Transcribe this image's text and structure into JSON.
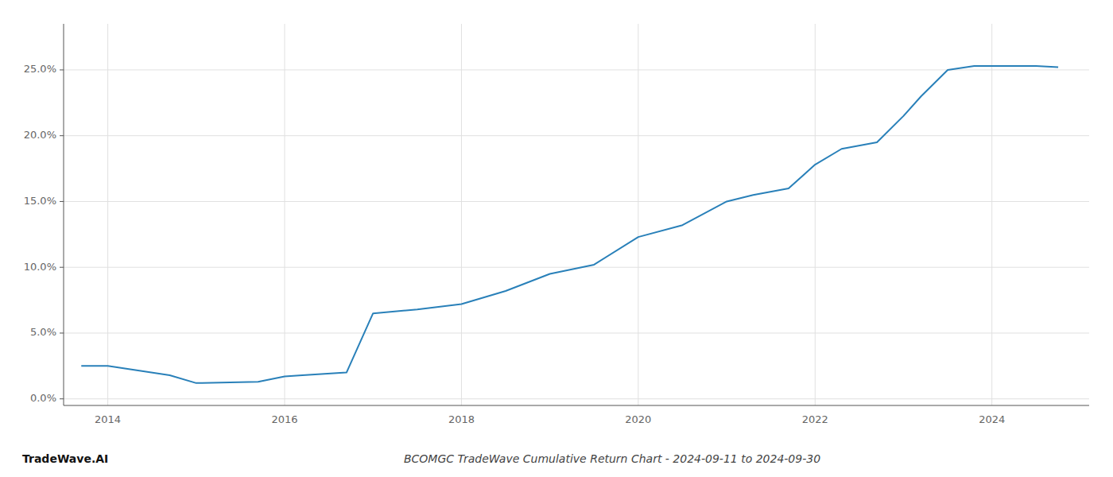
{
  "chart_data": {
    "type": "line",
    "title": "BCOMGC TradeWave Cumulative Return Chart - 2024-09-11 to 2024-09-30",
    "annotations": [
      "TradeWave.AI"
    ],
    "x": [
      2013.7,
      2014.0,
      2014.7,
      2015.0,
      2015.7,
      2016.0,
      2016.2,
      2016.7,
      2017.0,
      2017.5,
      2018.0,
      2018.5,
      2019.0,
      2019.5,
      2020.0,
      2020.5,
      2021.0,
      2021.3,
      2021.7,
      2022.0,
      2022.3,
      2022.7,
      2023.0,
      2023.2,
      2023.5,
      2023.8,
      2024.0,
      2024.5,
      2024.75
    ],
    "values": [
      0.025,
      0.025,
      0.018,
      0.012,
      0.013,
      0.017,
      0.018,
      0.02,
      0.065,
      0.068,
      0.072,
      0.082,
      0.095,
      0.102,
      0.123,
      0.132,
      0.15,
      0.155,
      0.16,
      0.178,
      0.19,
      0.195,
      0.215,
      0.23,
      0.25,
      0.253,
      0.253,
      0.253,
      0.252
    ],
    "color": "#2980b9",
    "xlim": [
      2013.5,
      2025.1
    ],
    "ylim": [
      -0.005,
      0.285
    ],
    "xticks": [
      2014,
      2016,
      2018,
      2020,
      2022,
      2024
    ],
    "yticks": [
      {
        "value": 0.0,
        "label": "0.0%"
      },
      {
        "value": 0.05,
        "label": "5.0%"
      },
      {
        "value": 0.1,
        "label": "10.0%"
      },
      {
        "value": 0.15,
        "label": "15.0%"
      },
      {
        "value": 0.2,
        "label": "20.0%"
      },
      {
        "value": 0.25,
        "label": "25.0%"
      }
    ],
    "grid": true
  }
}
